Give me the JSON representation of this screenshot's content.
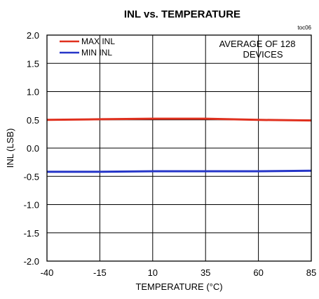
{
  "chart_data": {
    "type": "line",
    "title": "INL vs. TEMPERATURE",
    "figure_id": "toc06",
    "xlabel": "TEMPERATURE (°C)",
    "ylabel": "INL (LSB)",
    "xlim": [
      -40,
      85
    ],
    "ylim": [
      -2.0,
      2.0
    ],
    "x_ticks": [
      -40,
      -15,
      10,
      35,
      60,
      85
    ],
    "x_tick_labels": [
      "-40",
      "-15",
      "10",
      "35",
      "60",
      "85"
    ],
    "y_ticks": [
      -2.0,
      -1.5,
      -1.0,
      -0.5,
      0.0,
      0.5,
      1.0,
      1.5,
      2.0
    ],
    "y_tick_labels": [
      "-2.0",
      "-1.5",
      "-1.0",
      "-0.5",
      "0.0",
      "0.5",
      "1.0",
      "1.5",
      "2.0"
    ],
    "grid": true,
    "legend_position": "top-left",
    "annotation": {
      "line1": "AVERAGE OF 128",
      "line2": "DEVICES"
    },
    "series": [
      {
        "name": "MAX INL",
        "color": "#e0301e",
        "x": [
          -40,
          -15,
          10,
          35,
          60,
          85
        ],
        "y": [
          0.5,
          0.51,
          0.52,
          0.52,
          0.5,
          0.49
        ]
      },
      {
        "name": "MIN INL",
        "color": "#2636c8",
        "x": [
          -40,
          -15,
          10,
          35,
          60,
          85
        ],
        "y": [
          -0.42,
          -0.42,
          -0.41,
          -0.41,
          -0.41,
          -0.4
        ]
      }
    ]
  }
}
